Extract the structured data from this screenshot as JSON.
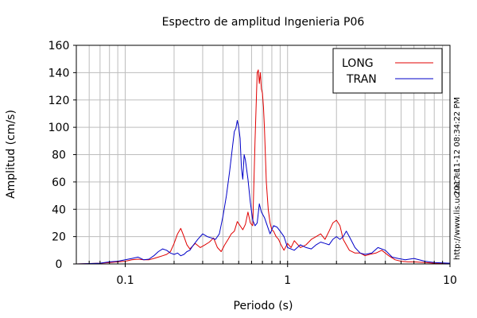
{
  "chart_data": {
    "type": "line",
    "title": "Espectro de amplitud Ingenieria P06",
    "xlabel": "Periodo (s)",
    "ylabel": "Amplitud (cm/s)",
    "xscale": "log",
    "xlim": [
      0.05,
      10
    ],
    "ylim": [
      0,
      160
    ],
    "x_ticks": [
      0.1,
      1,
      10
    ],
    "x_tick_labels": [
      "0.1",
      "1",
      "10"
    ],
    "y_ticks": [
      0,
      20,
      40,
      60,
      80,
      100,
      120,
      140,
      160
    ],
    "y_tick_labels": [
      "0",
      "20",
      "40",
      "60",
      "80",
      "100",
      "120",
      "140",
      "160"
    ],
    "grid": true,
    "legend_position": "top-right",
    "side_text": "2017-11-12 08:34:22 PM",
    "side_url": "http://www.lis.ucr.ac.cr",
    "series": [
      {
        "name": "LONG",
        "color": "#e00000",
        "x": [
          0.05,
          0.07,
          0.08,
          0.09,
          0.1,
          0.11,
          0.12,
          0.13,
          0.14,
          0.15,
          0.16,
          0.17,
          0.18,
          0.19,
          0.2,
          0.21,
          0.22,
          0.23,
          0.24,
          0.25,
          0.27,
          0.29,
          0.31,
          0.33,
          0.35,
          0.37,
          0.39,
          0.41,
          0.43,
          0.45,
          0.47,
          0.49,
          0.51,
          0.53,
          0.55,
          0.57,
          0.59,
          0.61,
          0.63,
          0.65,
          0.66,
          0.67,
          0.68,
          0.69,
          0.7,
          0.71,
          0.72,
          0.73,
          0.74,
          0.76,
          0.78,
          0.8,
          0.82,
          0.85,
          0.88,
          0.91,
          0.95,
          1.0,
          1.05,
          1.1,
          1.2,
          1.3,
          1.4,
          1.5,
          1.6,
          1.7,
          1.8,
          1.9,
          2.0,
          2.1,
          2.2,
          2.4,
          2.6,
          2.8,
          3.0,
          3.2,
          3.5,
          3.8,
          4.2,
          4.6,
          5.0,
          5.5,
          6.0,
          7.0,
          8.0,
          10.0
        ],
        "y": [
          0,
          0.5,
          1,
          1.5,
          2,
          3,
          3.5,
          3,
          3,
          4,
          5,
          6,
          7,
          9,
          15,
          22,
          26,
          20,
          14,
          11,
          15,
          12,
          14,
          16,
          19,
          12,
          9,
          14,
          18,
          22,
          24,
          31,
          28,
          25,
          29,
          38,
          30,
          28,
          90,
          140,
          142,
          132,
          140,
          128,
          125,
          115,
          100,
          80,
          60,
          40,
          30,
          25,
          24,
          20,
          18,
          14,
          10,
          15,
          12,
          17,
          12,
          14,
          18,
          20,
          22,
          18,
          24,
          30,
          32,
          28,
          18,
          10,
          8,
          8,
          6,
          7,
          8,
          10,
          6,
          3,
          2,
          1.5,
          1.5,
          1,
          0.5,
          0.5
        ]
      },
      {
        "name": "TRAN",
        "color": "#0000c8",
        "x": [
          0.05,
          0.07,
          0.08,
          0.09,
          0.1,
          0.11,
          0.12,
          0.13,
          0.14,
          0.15,
          0.16,
          0.17,
          0.18,
          0.19,
          0.2,
          0.21,
          0.22,
          0.23,
          0.24,
          0.25,
          0.26,
          0.28,
          0.3,
          0.32,
          0.34,
          0.36,
          0.38,
          0.4,
          0.42,
          0.44,
          0.46,
          0.47,
          0.48,
          0.49,
          0.5,
          0.51,
          0.52,
          0.53,
          0.54,
          0.55,
          0.57,
          0.59,
          0.61,
          0.63,
          0.65,
          0.67,
          0.69,
          0.72,
          0.75,
          0.78,
          0.82,
          0.86,
          0.9,
          0.95,
          1.0,
          1.1,
          1.2,
          1.3,
          1.4,
          1.5,
          1.6,
          1.7,
          1.8,
          1.9,
          2.0,
          2.1,
          2.2,
          2.3,
          2.4,
          2.6,
          2.8,
          3.0,
          3.3,
          3.6,
          4.0,
          4.4,
          4.8,
          5.3,
          6.0,
          7.0,
          8.0,
          10.0
        ],
        "y": [
          0,
          0.5,
          1.5,
          2,
          3,
          4,
          5,
          3,
          3.5,
          6,
          9,
          11,
          10,
          8,
          7,
          8,
          6,
          7,
          9,
          10,
          13,
          18,
          22,
          20,
          19,
          18,
          22,
          35,
          50,
          68,
          88,
          97,
          99,
          105,
          100,
          92,
          70,
          62,
          80,
          76,
          62,
          45,
          32,
          28,
          30,
          44,
          38,
          34,
          28,
          22,
          28,
          27,
          24,
          20,
          12,
          10,
          14,
          12,
          11,
          14,
          16,
          15,
          14,
          18,
          20,
          18,
          20,
          24,
          20,
          12,
          8,
          7,
          8,
          12,
          10,
          5,
          4,
          3,
          4,
          2,
          1,
          0.5
        ]
      }
    ]
  }
}
